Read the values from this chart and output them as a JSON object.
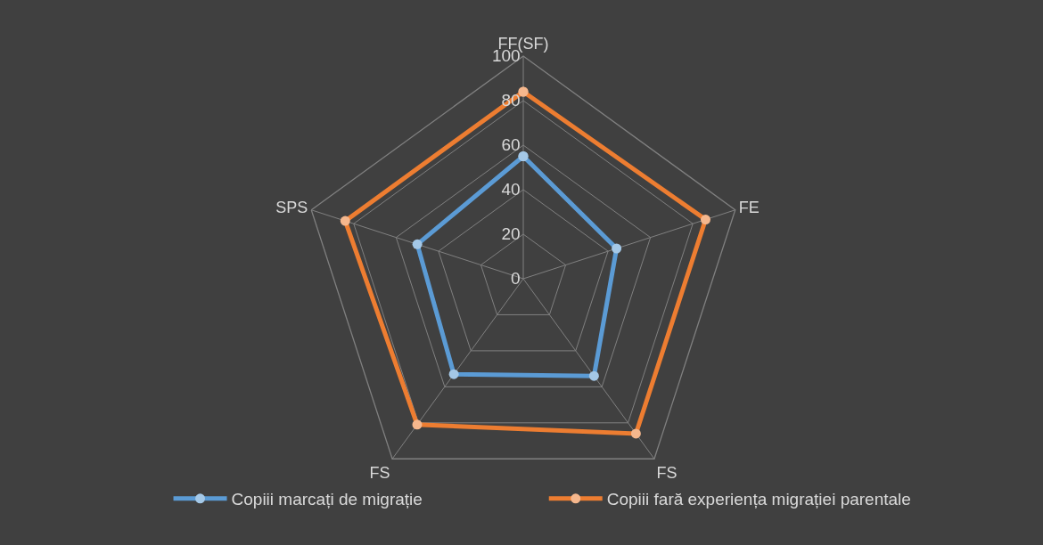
{
  "chart_data": {
    "type": "radar",
    "categories": [
      "FF(SF)",
      "FE",
      "FS",
      "FS",
      "SPS"
    ],
    "ylim": [
      0,
      100
    ],
    "yticks": [
      0,
      20,
      40,
      60,
      80,
      100
    ],
    "grid": true,
    "legend": "bottom",
    "marker": "circle",
    "series": [
      {
        "name": "Copiii marcați de migrație",
        "color": "#5b9bd5",
        "values": [
          55,
          44,
          54,
          53,
          50
        ]
      },
      {
        "name": "Copiii fară experiența migrației parentale",
        "color": "#ed7d31",
        "values": [
          84,
          86,
          86,
          81,
          84
        ]
      }
    ]
  }
}
